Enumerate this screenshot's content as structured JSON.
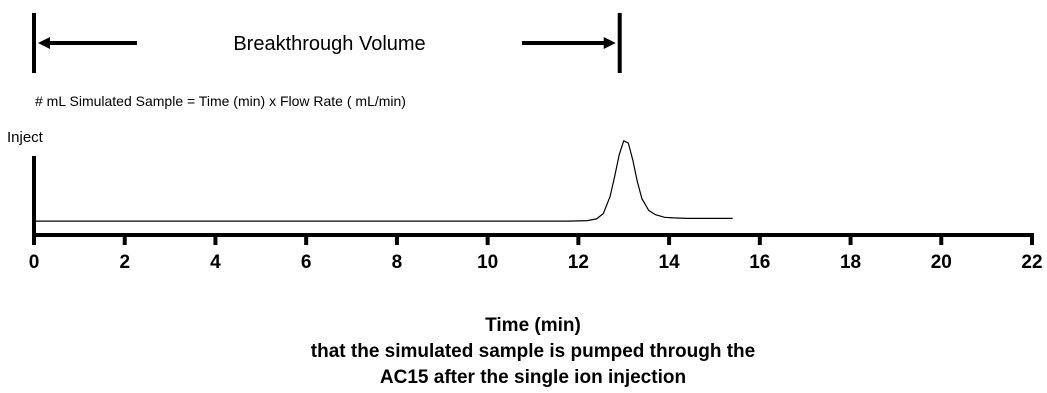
{
  "chart_data": {
    "type": "line",
    "title": "",
    "annotations": {
      "breakthrough_label": "Breakthrough Volume",
      "formula": "# mL Simulated Sample = Time (min) x Flow Rate ( mL/min)",
      "inject_label": "Inject"
    },
    "xlabel_lines": [
      "Time (min)",
      "that the simulated sample is pumped through the",
      "AC15 after the single ion injection"
    ],
    "ylabel": "",
    "x_ticks": [
      "0",
      "2",
      "4",
      "6",
      "8",
      "10",
      "12",
      "14",
      "16",
      "18",
      "20",
      "22"
    ],
    "xlim": [
      0,
      22
    ],
    "ylim": [
      0,
      1
    ],
    "grid": false,
    "legend": "none",
    "breakthrough_marker": {
      "start": 0,
      "end": 13.0
    },
    "series": [
      {
        "x": [
          0,
          11.8,
          12.2,
          12.4,
          12.55,
          12.7,
          12.8,
          12.9,
          13.0,
          13.1,
          13.2,
          13.3,
          13.4,
          13.55,
          13.7,
          13.9,
          14.1,
          14.4,
          15.4
        ],
        "y": [
          0.13,
          0.13,
          0.135,
          0.15,
          0.2,
          0.36,
          0.55,
          0.75,
          0.88,
          0.86,
          0.7,
          0.5,
          0.34,
          0.23,
          0.19,
          0.165,
          0.16,
          0.155,
          0.155
        ],
        "color": "#000000"
      }
    ]
  }
}
